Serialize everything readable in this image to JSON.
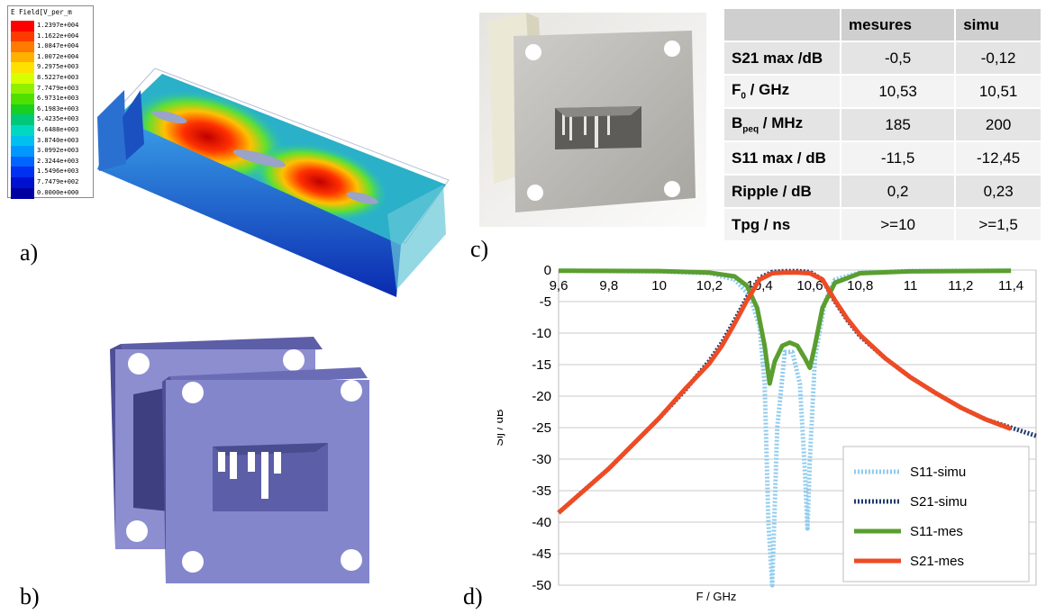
{
  "panel_labels": {
    "a": "a)",
    "b": "b)",
    "c": "c)",
    "d": "d)"
  },
  "field_legend": {
    "title": "E Field[V_per_m",
    "values": [
      "1.2397e+004",
      "1.1622e+004",
      "1.0847e+004",
      "1.0072e+004",
      "9.2975e+003",
      "8.5227e+003",
      "7.7479e+003",
      "6.9731e+003",
      "6.1983e+003",
      "5.4235e+003",
      "4.6488e+003",
      "3.8740e+003",
      "3.0992e+003",
      "2.3244e+003",
      "1.5496e+003",
      "7.7479e+002",
      "0.0000e+000"
    ],
    "colors": [
      "#ff0000",
      "#ff3a00",
      "#ff7a00",
      "#ffb000",
      "#ffe000",
      "#d8ff00",
      "#90f000",
      "#4fe000",
      "#18d020",
      "#00c878",
      "#00d8c0",
      "#00c0f0",
      "#0098ff",
      "#0064ff",
      "#0030f0",
      "#0010d0",
      "#0000a0"
    ]
  },
  "table": {
    "headers": [
      "",
      "mesures",
      "simu"
    ],
    "rows": [
      {
        "label": "S21 max /dB",
        "mes": "-0,5",
        "simu": "-0,12"
      },
      {
        "label_main": "F",
        "label_sub": "0",
        "label_rest": " / GHz",
        "mes": "10,53",
        "simu": "10,51"
      },
      {
        "label_main": "B",
        "label_sub": "peq",
        "label_rest": " / MHz",
        "mes": "185",
        "simu": "200"
      },
      {
        "label": "S11 max / dB",
        "mes": "-11,5",
        "simu": "-12,45"
      },
      {
        "label": "Ripple / dB",
        "mes": "0,2",
        "simu": "0,23"
      },
      {
        "label": "Tpg / ns",
        "mes": ">=10",
        "simu": ">=1,5"
      }
    ]
  },
  "chart_data": {
    "type": "line",
    "xlabel": "F / GHz",
    "ylabel": "Sij / dB",
    "xlim": [
      9.6,
      11.5
    ],
    "ylim": [
      -50,
      0
    ],
    "x_ticks": [
      "9,6",
      "9,8",
      "10",
      "10,2",
      "10,4",
      "10,6",
      "10,8",
      "11",
      "11,2",
      "11,4"
    ],
    "x_tick_values": [
      9.6,
      9.8,
      10.0,
      10.2,
      10.4,
      10.6,
      10.8,
      11.0,
      11.2,
      11.4
    ],
    "y_ticks": [
      "0",
      "-5",
      "-10",
      "-15",
      "-20",
      "-25",
      "-30",
      "-35",
      "-40",
      "-45",
      "-50"
    ],
    "y_tick_values": [
      0,
      -5,
      -10,
      -15,
      -20,
      -25,
      -30,
      -35,
      -40,
      -45,
      -50
    ],
    "grid": true,
    "legend_position": "bottom-right",
    "series": [
      {
        "name": "S11-simu",
        "color": "#8ecbee",
        "dash": "dotted",
        "width": 5,
        "x": [
          9.6,
          10.0,
          10.2,
          10.3,
          10.36,
          10.4,
          10.42,
          10.435,
          10.45,
          10.47,
          10.5,
          10.53,
          10.56,
          10.58,
          10.59,
          10.6,
          10.62,
          10.66,
          10.7,
          10.8,
          11.0,
          11.4
        ],
        "y": [
          -0.1,
          -0.2,
          -0.5,
          -1.5,
          -4,
          -9,
          -18,
          -40,
          -50,
          -25,
          -13,
          -13,
          -18,
          -32,
          -41,
          -30,
          -14,
          -5,
          -1.5,
          -0.4,
          -0.15,
          -0.1
        ]
      },
      {
        "name": "S21-simu",
        "color": "#1f3b6e",
        "dash": "dotted",
        "width": 5,
        "x": [
          9.6,
          9.7,
          9.8,
          9.9,
          10.0,
          10.1,
          10.2,
          10.25,
          10.3,
          10.35,
          10.4,
          10.45,
          10.5,
          10.55,
          10.6,
          10.65,
          10.7,
          10.75,
          10.8,
          10.9,
          11.0,
          11.1,
          11.2,
          11.3,
          11.4,
          11.5
        ],
        "y": [
          -38.5,
          -35,
          -31.5,
          -27.5,
          -23.5,
          -19.2,
          -14.4,
          -11.5,
          -8,
          -4.3,
          -1.2,
          -0.3,
          -0.15,
          -0.15,
          -0.3,
          -1.5,
          -5,
          -8,
          -10.5,
          -14,
          -17,
          -19.5,
          -21.8,
          -23.7,
          -25,
          -26.3
        ]
      },
      {
        "name": "S11-mes",
        "color": "#5a9e2f",
        "dash": "solid",
        "width": 5,
        "x": [
          9.6,
          10.0,
          10.2,
          10.3,
          10.35,
          10.39,
          10.42,
          10.44,
          10.46,
          10.49,
          10.52,
          10.55,
          10.58,
          10.6,
          10.62,
          10.65,
          10.7,
          10.8,
          11.0,
          11.4
        ],
        "y": [
          -0.1,
          -0.15,
          -0.4,
          -1,
          -2.5,
          -6,
          -12,
          -18,
          -14.5,
          -12,
          -11.5,
          -12,
          -14,
          -15.5,
          -12,
          -6,
          -2,
          -0.5,
          -0.2,
          -0.1
        ]
      },
      {
        "name": "S21-mes",
        "color": "#ee4b24",
        "dash": "solid",
        "width": 5,
        "x": [
          9.6,
          9.7,
          9.8,
          9.9,
          10.0,
          10.1,
          10.2,
          10.25,
          10.3,
          10.35,
          10.4,
          10.45,
          10.5,
          10.55,
          10.6,
          10.65,
          10.7,
          10.75,
          10.8,
          10.9,
          11.0,
          11.1,
          11.2,
          11.3,
          11.4
        ],
        "y": [
          -38.5,
          -35,
          -31.5,
          -27.5,
          -23.5,
          -19,
          -14.8,
          -12,
          -8.5,
          -4.8,
          -1.5,
          -0.5,
          -0.4,
          -0.4,
          -0.5,
          -1.5,
          -4.8,
          -7.8,
          -10.3,
          -14,
          -17,
          -19.5,
          -21.8,
          -23.7,
          -25.2
        ]
      }
    ]
  }
}
